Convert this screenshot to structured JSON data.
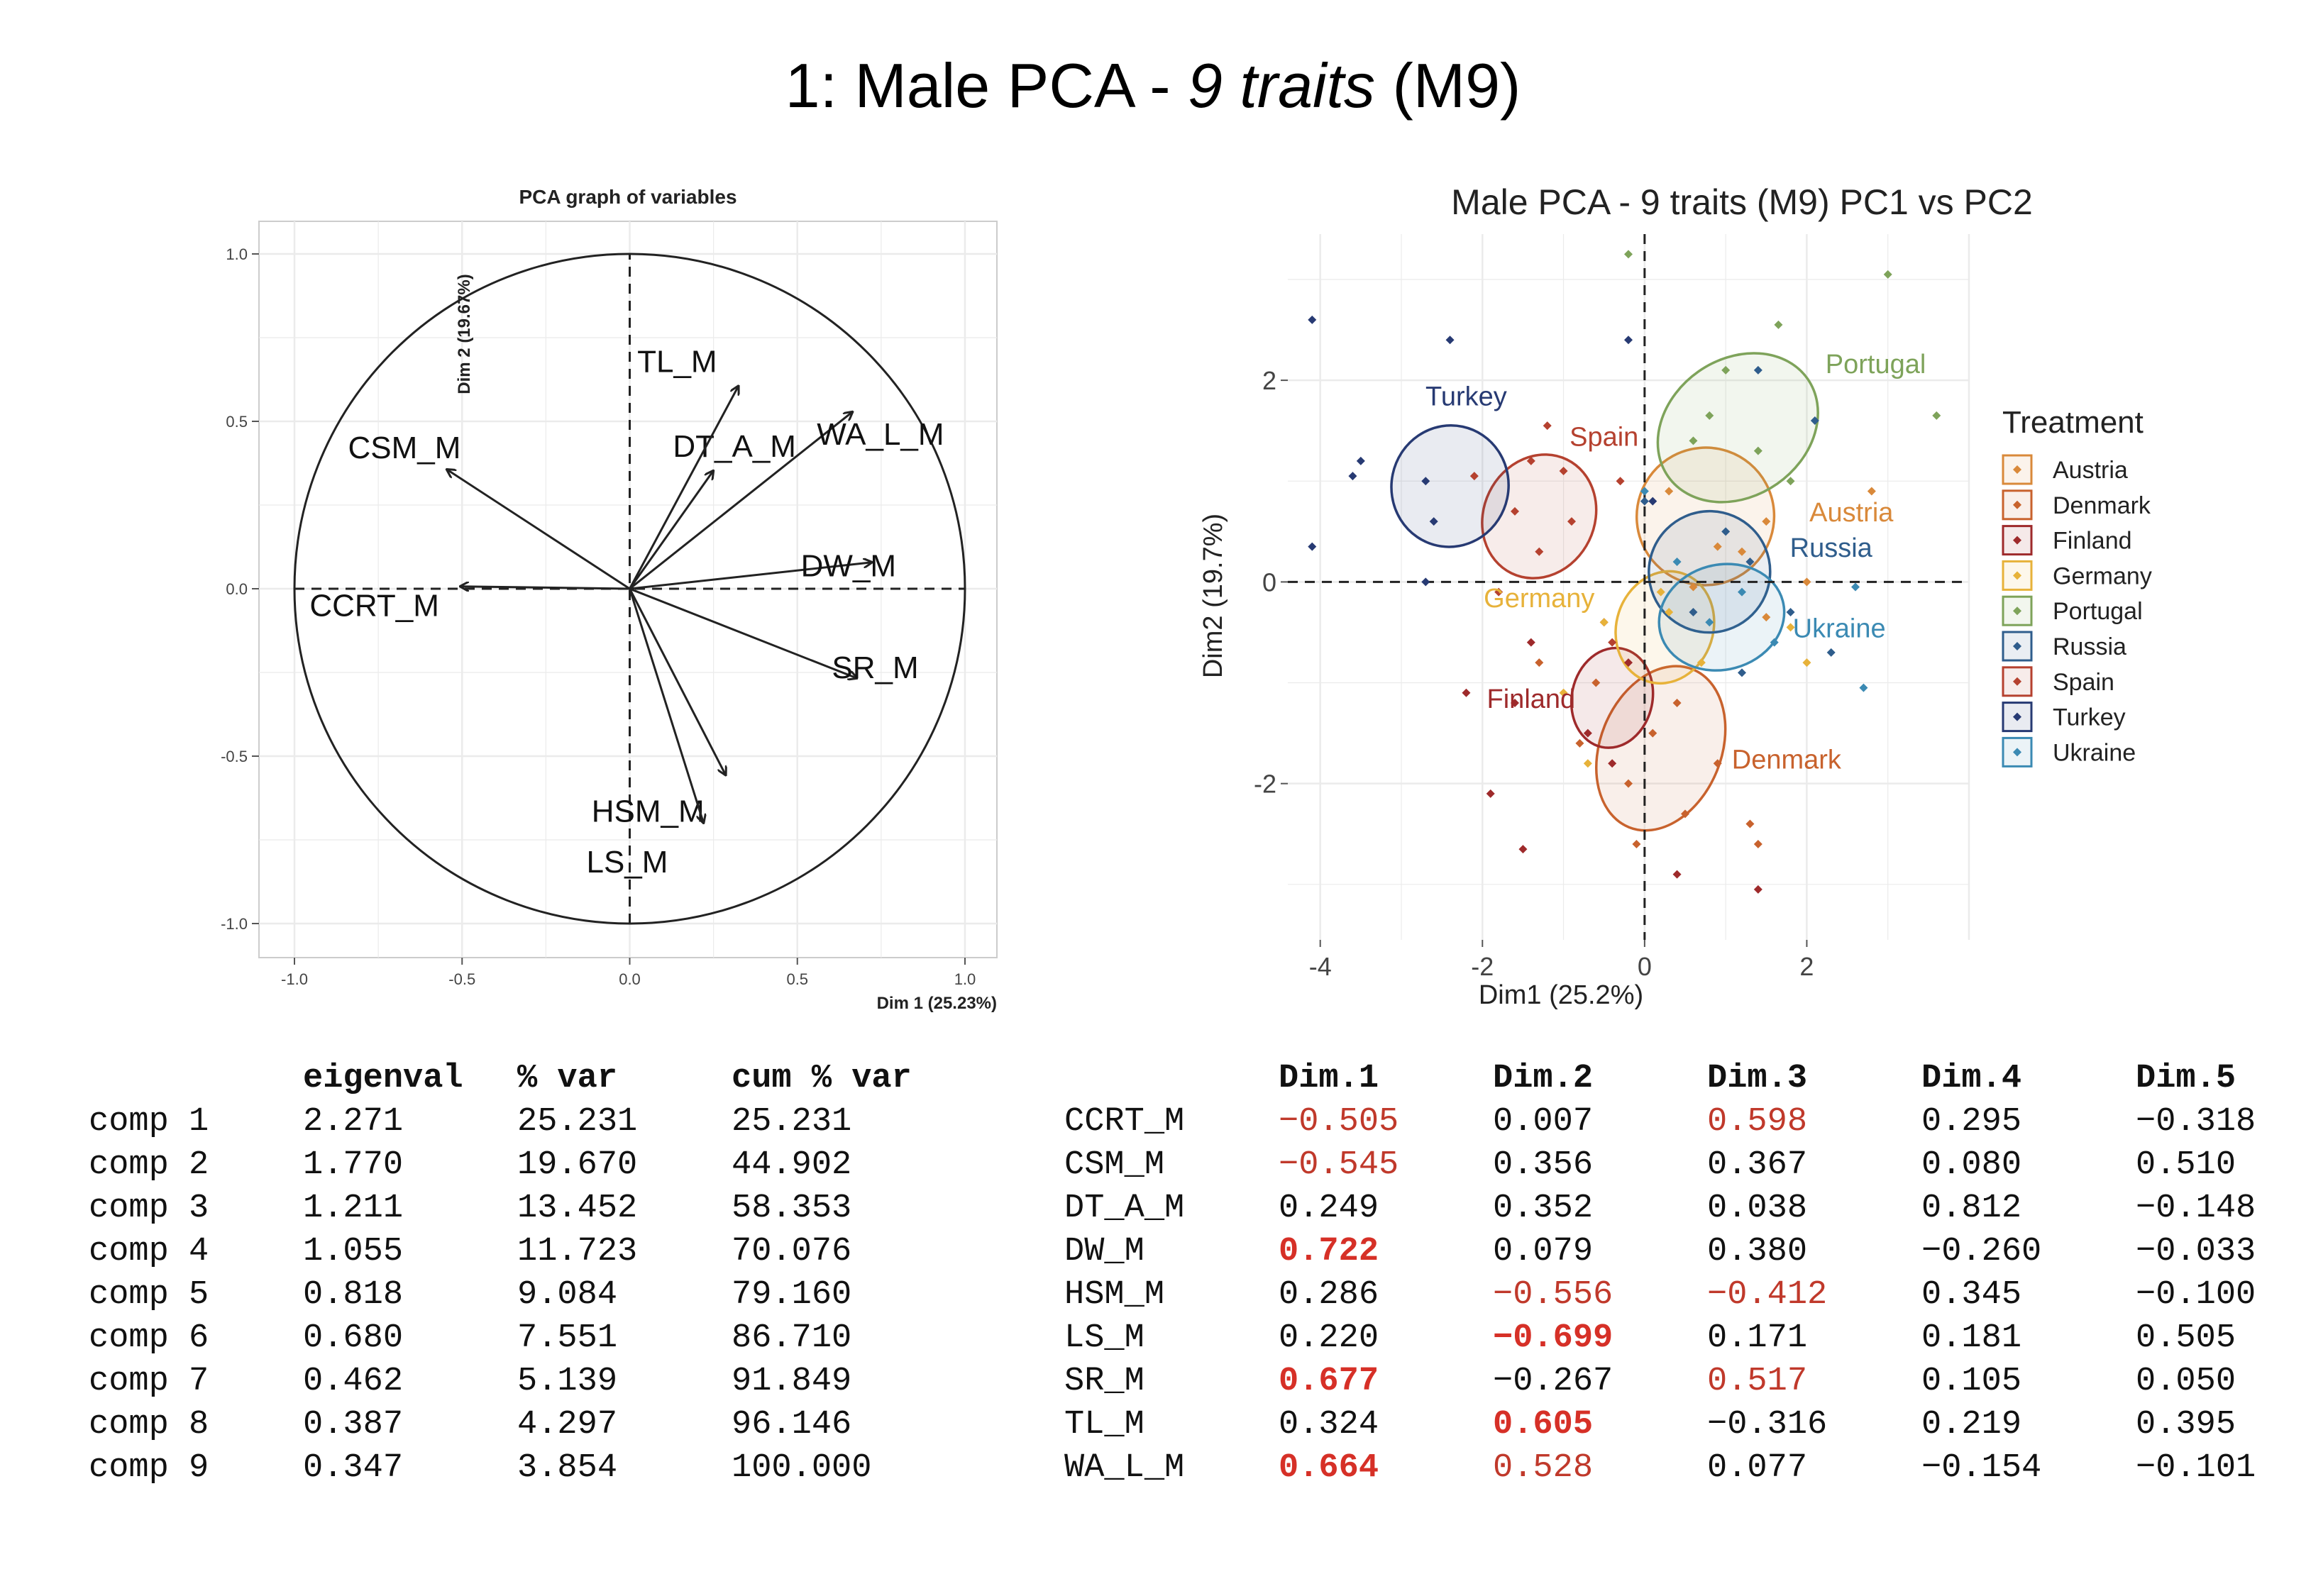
{
  "page": {
    "title_prefix": "1: Male PCA - ",
    "title_italic": "9 traits",
    "title_suffix": " (M9)"
  },
  "chart_data": [
    {
      "type": "scatter",
      "subtype": "pca-variable-correlation-circle",
      "title": "PCA graph of variables",
      "xlabel": "Dim 1 (25.23%)",
      "ylabel": "Dim 2 (19.67%)",
      "xlim": [
        -1.0,
        1.0
      ],
      "ylim": [
        -1.0,
        1.0
      ],
      "xticks": [
        "-1.0",
        "-0.5",
        "0.0",
        "0.5",
        "1.0"
      ],
      "yticks": [
        "-1.0",
        "-0.5",
        "0.0",
        "0.5",
        "1.0"
      ],
      "grid": true,
      "variables": [
        {
          "name": "CCRT_M",
          "x": -0.505,
          "y": 0.007
        },
        {
          "name": "CSM_M",
          "x": -0.545,
          "y": 0.356
        },
        {
          "name": "DT_A_M",
          "x": 0.249,
          "y": 0.352
        },
        {
          "name": "DW_M",
          "x": 0.722,
          "y": 0.079
        },
        {
          "name": "HSM_M",
          "x": 0.286,
          "y": -0.556
        },
        {
          "name": "LS_M",
          "x": 0.22,
          "y": -0.699
        },
        {
          "name": "SR_M",
          "x": 0.677,
          "y": -0.267
        },
        {
          "name": "TL_M",
          "x": 0.324,
          "y": 0.605
        },
        {
          "name": "WA_L_M",
          "x": 0.664,
          "y": 0.528
        }
      ]
    },
    {
      "type": "scatter",
      "subtype": "pca-individuals-with-group-ellipses",
      "title": "Male PCA - 9 traits (M9) PC1 vs PC2",
      "xlabel": "Dim1 (25.2%)",
      "ylabel": "Dim2 (19.7%)",
      "xlim": [
        -4.4,
        4.0
      ],
      "ylim": [
        -3.55,
        3.45
      ],
      "xticks": [
        "-4",
        "-2",
        "0",
        "2"
      ],
      "yticks": [
        "-2",
        "0",
        "2"
      ],
      "grid": true,
      "legend": {
        "title": "Treatment",
        "position": "right"
      },
      "groups": [
        {
          "name": "Austria",
          "color": "#d9893a",
          "center": [
            0.75,
            0.65
          ],
          "rx": 0.85,
          "ry": 0.68,
          "angle": 50,
          "points": [
            [
              1.5,
              0.6
            ],
            [
              2.8,
              0.9
            ],
            [
              0.9,
              0.35
            ],
            [
              0.6,
              -0.05
            ],
            [
              1.5,
              -0.35
            ],
            [
              2.0,
              0.0
            ],
            [
              0.3,
              0.9
            ],
            [
              1.2,
              0.3
            ]
          ]
        },
        {
          "name": "Denmark",
          "color": "#c8622d",
          "center": [
            0.2,
            -1.65
          ],
          "rx": 1.05,
          "ry": 0.6,
          "angle": 68,
          "points": [
            [
              0.5,
              -2.3
            ],
            [
              1.3,
              -2.4
            ],
            [
              1.4,
              -2.6
            ],
            [
              -0.2,
              -2.0
            ],
            [
              0.1,
              -1.5
            ],
            [
              -0.6,
              -1.0
            ],
            [
              -1.3,
              -0.8
            ],
            [
              0.4,
              -1.2
            ],
            [
              0.9,
              -1.8
            ],
            [
              -0.1,
              -2.6
            ],
            [
              -0.8,
              -1.6
            ]
          ]
        },
        {
          "name": "Finland",
          "color": "#9e2a2b",
          "center": [
            -0.4,
            -1.15
          ],
          "rx": 0.62,
          "ry": 0.4,
          "angle": 78,
          "points": [
            [
              -2.2,
              -1.1
            ],
            [
              -1.9,
              -2.1
            ],
            [
              -1.6,
              -1.2
            ],
            [
              -0.2,
              -0.8
            ],
            [
              -0.7,
              -1.5
            ],
            [
              -0.4,
              -1.8
            ],
            [
              -1.5,
              -2.65
            ],
            [
              0.4,
              -2.9
            ],
            [
              1.4,
              -3.05
            ],
            [
              -1.4,
              -0.6
            ],
            [
              -0.5,
              -0.4
            ]
          ]
        },
        {
          "name": "Germany",
          "color": "#e7b23a",
          "center": [
            0.25,
            -0.45
          ],
          "rx": 0.7,
          "ry": 0.48,
          "angle": 72,
          "points": [
            [
              0.3,
              -0.3
            ],
            [
              -0.5,
              -0.4
            ],
            [
              0.7,
              -0.8
            ],
            [
              -1.0,
              -1.1
            ],
            [
              2.0,
              -0.8
            ],
            [
              1.8,
              -0.45
            ],
            [
              -0.7,
              -1.8
            ],
            [
              0.2,
              -0.1
            ]
          ]
        },
        {
          "name": "Portugal",
          "color": "#7ea35a",
          "center": [
            1.15,
            1.53
          ],
          "rx": 1.05,
          "ry": 0.68,
          "angle": 35,
          "points": [
            [
              3.0,
              3.05
            ],
            [
              3.6,
              1.65
            ],
            [
              1.65,
              2.55
            ],
            [
              1.0,
              2.1
            ],
            [
              0.8,
              1.65
            ],
            [
              1.4,
              1.3
            ],
            [
              0.6,
              1.4
            ],
            [
              1.8,
              1.0
            ],
            [
              -0.2,
              3.25
            ]
          ]
        },
        {
          "name": "Russia",
          "color": "#2f5d8c",
          "center": [
            0.8,
            0.1
          ],
          "rx": 0.75,
          "ry": 0.6,
          "angle": 45,
          "points": [
            [
              1.0,
              0.5
            ],
            [
              1.3,
              0.2
            ],
            [
              0.6,
              -0.3
            ],
            [
              1.8,
              -0.3
            ],
            [
              1.2,
              -0.9
            ],
            [
              0.0,
              0.8
            ],
            [
              2.1,
              1.6
            ],
            [
              1.4,
              2.1
            ],
            [
              2.3,
              -0.7
            ]
          ]
        },
        {
          "name": "Spain",
          "color": "#b5412f",
          "center": [
            -1.3,
            0.65
          ],
          "rx": 0.78,
          "ry": 0.55,
          "angle": 64,
          "points": [
            [
              -1.2,
              1.55
            ],
            [
              -1.4,
              1.2
            ],
            [
              -1.0,
              1.1
            ],
            [
              -1.6,
              0.7
            ],
            [
              -0.9,
              0.6
            ],
            [
              -1.8,
              -0.1
            ],
            [
              -0.3,
              1.0
            ],
            [
              -1.3,
              0.3
            ],
            [
              -0.4,
              -0.6
            ],
            [
              -2.1,
              1.05
            ]
          ]
        },
        {
          "name": "Turkey",
          "color": "#273a73",
          "center": [
            -2.4,
            0.95
          ],
          "rx": 0.75,
          "ry": 0.58,
          "angle": 78,
          "points": [
            [
              -4.1,
              2.6
            ],
            [
              -2.4,
              2.4
            ],
            [
              -3.5,
              1.2
            ],
            [
              -2.7,
              1.0
            ],
            [
              -2.6,
              0.6
            ],
            [
              -3.6,
              1.05
            ],
            [
              -4.1,
              0.35
            ],
            [
              -2.7,
              -0.0
            ],
            [
              -0.2,
              2.4
            ],
            [
              0.1,
              0.8
            ]
          ]
        },
        {
          "name": "Ukraine",
          "color": "#3b8ab3",
          "center": [
            0.95,
            -0.35
          ],
          "rx": 0.78,
          "ry": 0.52,
          "angle": 15,
          "points": [
            [
              0.8,
              -0.4
            ],
            [
              1.6,
              -0.6
            ],
            [
              2.7,
              -1.05
            ],
            [
              1.2,
              -0.1
            ],
            [
              2.6,
              -0.05
            ],
            [
              0.4,
              0.2
            ],
            [
              0.0,
              0.9
            ]
          ]
        }
      ]
    }
  ],
  "eigen_table": {
    "headers": [
      "",
      "eigenval",
      "% var",
      "cum % var"
    ],
    "rows": [
      [
        "comp 1",
        "2.271",
        "25.231",
        "25.231"
      ],
      [
        "comp 2",
        "1.770",
        "19.670",
        "44.902"
      ],
      [
        "comp 3",
        "1.211",
        "13.452",
        "58.353"
      ],
      [
        "comp 4",
        "1.055",
        "11.723",
        "70.076"
      ],
      [
        "comp 5",
        "0.818",
        "9.084",
        "79.160"
      ],
      [
        "comp 6",
        "0.680",
        "7.551",
        "86.710"
      ],
      [
        "comp 7",
        "0.462",
        "5.139",
        "91.849"
      ],
      [
        "comp 8",
        "0.387",
        "4.297",
        "96.146"
      ],
      [
        "comp 9",
        "0.347",
        "3.854",
        "100.000"
      ]
    ]
  },
  "loadings_table": {
    "headers": [
      "",
      "Dim.1",
      "Dim.2",
      "Dim.3",
      "Dim.4",
      "Dim.5"
    ],
    "highlight_colors": {
      "red": "#c0392b",
      "redbold": "#d63027"
    },
    "rows": [
      {
        "cells": [
          "CCRT_M",
          "-0.505",
          "0.007",
          "0.598",
          "0.295",
          "-0.318"
        ],
        "styles": [
          "",
          "red",
          "",
          "red",
          "",
          ""
        ]
      },
      {
        "cells": [
          "CSM_M",
          "-0.545",
          "0.356",
          "0.367",
          "0.080",
          "0.510"
        ],
        "styles": [
          "",
          "red",
          "",
          "",
          "",
          ""
        ]
      },
      {
        "cells": [
          "DT_A_M",
          "0.249",
          "0.352",
          "0.038",
          "0.812",
          "-0.148"
        ],
        "styles": [
          "",
          "",
          "",
          "",
          "",
          ""
        ]
      },
      {
        "cells": [
          "DW_M",
          "0.722",
          "0.079",
          "0.380",
          "-0.260",
          "-0.033"
        ],
        "styles": [
          "",
          "redbold",
          "",
          "",
          "",
          ""
        ]
      },
      {
        "cells": [
          "HSM_M",
          "0.286",
          "-0.556",
          "-0.412",
          "0.345",
          "-0.100"
        ],
        "styles": [
          "",
          "",
          "red",
          "red",
          "",
          ""
        ]
      },
      {
        "cells": [
          "LS_M",
          "0.220",
          "-0.699",
          "0.171",
          "0.181",
          "0.505"
        ],
        "styles": [
          "",
          "",
          "redbold",
          "",
          "",
          ""
        ]
      },
      {
        "cells": [
          "SR_M",
          "0.677",
          "-0.267",
          "0.517",
          "0.105",
          "0.050"
        ],
        "styles": [
          "",
          "redbold",
          "",
          "red",
          "",
          ""
        ]
      },
      {
        "cells": [
          "TL_M",
          "0.324",
          "0.605",
          "-0.316",
          "0.219",
          "0.395"
        ],
        "styles": [
          "",
          "",
          "redbold",
          "",
          "",
          ""
        ]
      },
      {
        "cells": [
          "WA_L_M",
          "0.664",
          "0.528",
          "0.077",
          "-0.154",
          "-0.101"
        ],
        "styles": [
          "",
          "redbold",
          "red",
          "",
          "",
          ""
        ]
      }
    ]
  }
}
